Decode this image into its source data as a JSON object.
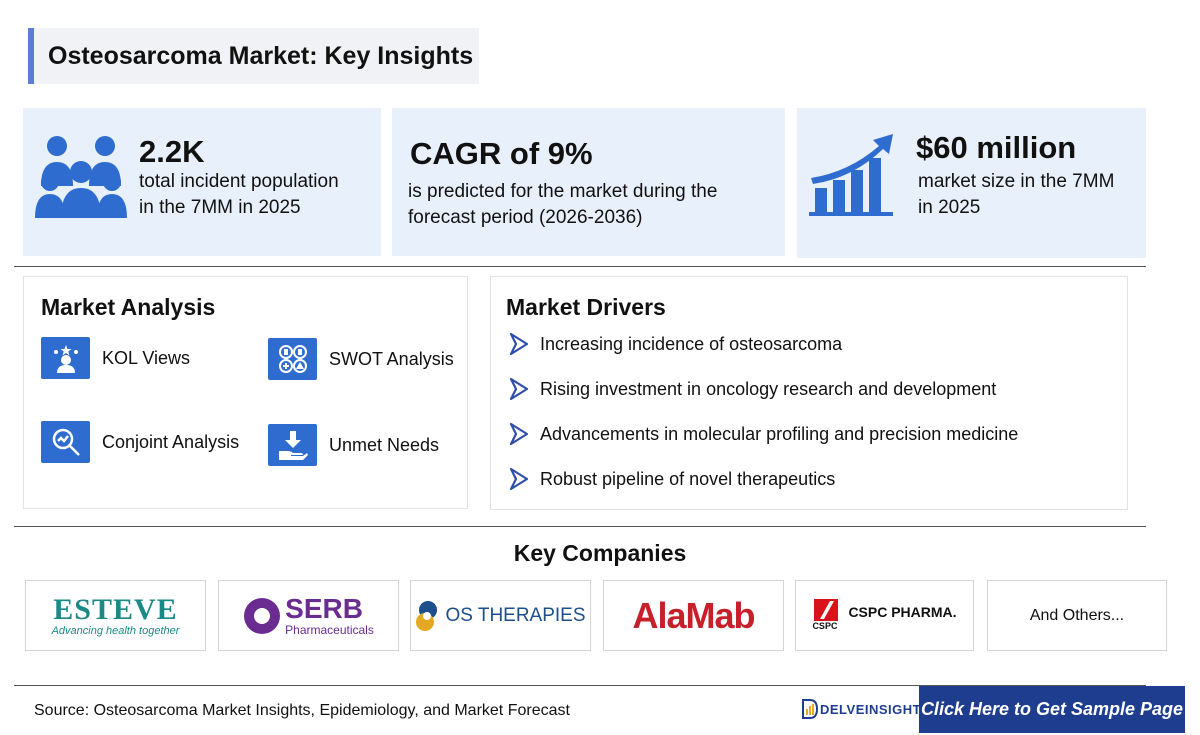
{
  "header": {
    "title": "Osteosarcoma Market: Key Insights"
  },
  "stats": [
    {
      "value": "2.2K",
      "desc1": "total incident population",
      "desc2": "in the 7MM in 2025"
    },
    {
      "value": "CAGR of 9%",
      "desc1": "is predicted for the market during the",
      "desc2": "forecast period (2026-2036)"
    },
    {
      "value": "$60 million",
      "desc1": "market size in the 7MM",
      "desc2": "in 2025"
    }
  ],
  "market_analysis": {
    "title": "Market Analysis",
    "items": [
      "KOL Views",
      "SWOT Analysis",
      "Conjoint Analysis",
      "Unmet Needs"
    ]
  },
  "market_drivers": {
    "title": "Market Drivers",
    "items": [
      "Increasing incidence of osteosarcoma",
      "Rising investment in oncology research and development",
      "Advancements in molecular profiling and precision medicine",
      "Robust pipeline of novel therapeutics"
    ]
  },
  "key_companies": {
    "title": "Key Companies",
    "logos": {
      "esteve": "ESTEVE",
      "esteve_tag": "Advancing health together",
      "serb": "SERB",
      "serb_sub": "Pharmaceuticals",
      "os": "OS THERAPIES",
      "alamab": "AlaMab",
      "cspc": "CSPC PHARMA.",
      "cspc_small": "CSPC"
    },
    "others": "And Others..."
  },
  "footer": {
    "source": "Source: Osteosarcoma Market Insights, Epidemiology, and Market Forecast",
    "brand": "DELVEINSIGHT",
    "cta": "Click Here to Get Sample Page"
  },
  "colors": {
    "accent": "#2f6ccf",
    "card_bg": "#e7f0fb",
    "cta_bg": "#1f3d8f",
    "alamab_red": "#c8202a",
    "esteve_teal": "#1b8a86",
    "serb_purple": "#6a2c91"
  }
}
